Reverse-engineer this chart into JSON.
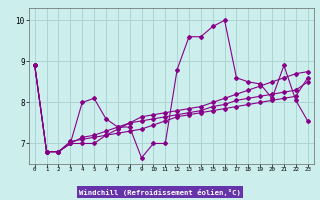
{
  "background_color": "#cceeed",
  "grid_color": "#aad4d3",
  "line_color": "#880088",
  "xlabel": "Windchill (Refroidissement éolien,°C)",
  "xlabel_bg": "#6633aa",
  "xlabel_fg": "#ffffff",
  "ylim": [
    6.5,
    10.3
  ],
  "xlim": [
    -0.5,
    23.5
  ],
  "yticks": [
    7,
    8,
    9,
    10
  ],
  "xticks": [
    0,
    1,
    2,
    3,
    4,
    5,
    6,
    7,
    8,
    9,
    10,
    11,
    12,
    13,
    14,
    15,
    16,
    17,
    18,
    19,
    20,
    21,
    22,
    23
  ],
  "series": [
    [
      8.9,
      6.8,
      6.8,
      7.0,
      8.0,
      8.1,
      7.6,
      7.4,
      7.4,
      6.65,
      7.0,
      7.0,
      8.8,
      9.6,
      9.6,
      9.85,
      10.0,
      8.6,
      8.5,
      8.45,
      8.1,
      8.9,
      8.05,
      7.55
    ],
    [
      8.9,
      6.8,
      6.8,
      7.0,
      7.0,
      7.0,
      7.2,
      7.35,
      7.5,
      7.65,
      7.7,
      7.75,
      7.8,
      7.85,
      7.9,
      8.0,
      8.1,
      8.2,
      8.3,
      8.4,
      8.5,
      8.6,
      8.7,
      8.75
    ],
    [
      8.9,
      6.8,
      6.8,
      7.0,
      7.15,
      7.2,
      7.3,
      7.4,
      7.5,
      7.55,
      7.6,
      7.65,
      7.7,
      7.75,
      7.8,
      7.9,
      7.95,
      8.05,
      8.1,
      8.15,
      8.2,
      8.25,
      8.3,
      8.5
    ],
    [
      8.9,
      6.8,
      6.8,
      7.05,
      7.1,
      7.15,
      7.2,
      7.25,
      7.3,
      7.35,
      7.45,
      7.55,
      7.65,
      7.7,
      7.75,
      7.8,
      7.85,
      7.9,
      7.95,
      8.0,
      8.05,
      8.1,
      8.15,
      8.6
    ]
  ],
  "marker": "D",
  "markersize": 2.0,
  "linewidth": 0.8
}
